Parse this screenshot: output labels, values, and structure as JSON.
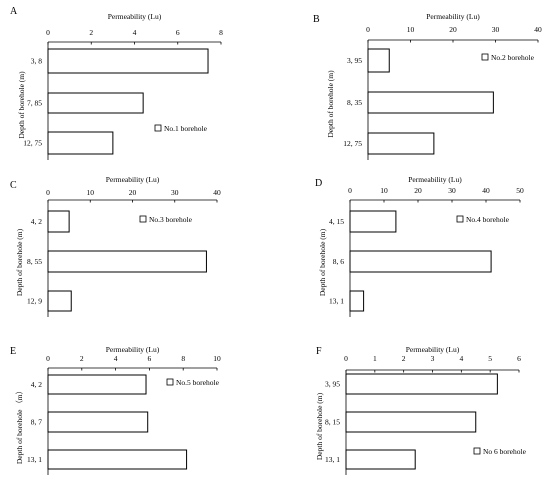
{
  "chart_data": [
    {
      "type": "bar",
      "orientation": "horizontal",
      "panel": "A",
      "title": "Permeability (Lu)",
      "ylabel": "Depth of borehole (m)",
      "categories": [
        "3, 8",
        "7, 85",
        "12, 75"
      ],
      "series": [
        {
          "name": "No.1 borehole",
          "values": [
            7.4,
            4.4,
            3.0
          ]
        }
      ],
      "xlim": [
        0,
        8
      ],
      "xticks": [
        0,
        2,
        4,
        6,
        8
      ],
      "legend": "bottom-right"
    },
    {
      "type": "bar",
      "orientation": "horizontal",
      "panel": "B",
      "title": "Permeability (Lu)",
      "ylabel": "Depth of borehole (m)",
      "categories": [
        "3, 95",
        "8, 35",
        "12, 75"
      ],
      "series": [
        {
          "name": "No.2 borehole",
          "values": [
            5,
            29.5,
            15.5
          ]
        }
      ],
      "xlim": [
        0,
        40
      ],
      "xticks": [
        0,
        10,
        20,
        30,
        40
      ],
      "legend": "top-right"
    },
    {
      "type": "bar",
      "orientation": "horizontal",
      "panel": "C",
      "title": "Permeability (Lu)",
      "ylabel": "Depth of borehole (m)",
      "categories": [
        "4, 2",
        "8, 55",
        "12, 9"
      ],
      "series": [
        {
          "name": "No.3 borehole",
          "values": [
            5,
            37.5,
            5.5
          ]
        }
      ],
      "xlim": [
        0,
        40
      ],
      "xticks": [
        0,
        10,
        20,
        30,
        40
      ],
      "legend": "top-right"
    },
    {
      "type": "bar",
      "orientation": "horizontal",
      "panel": "D",
      "title": "Permeability (Lu)",
      "ylabel": "Depth of borehole (m)",
      "categories": [
        "4, 15",
        "8, 6",
        "13, 1"
      ],
      "series": [
        {
          "name": "No.4 borehole",
          "values": [
            13.5,
            41.5,
            4
          ]
        }
      ],
      "xlim": [
        0,
        50
      ],
      "xticks": [
        0,
        10,
        20,
        30,
        40,
        50
      ],
      "legend": "top-right"
    },
    {
      "type": "bar",
      "orientation": "horizontal",
      "panel": "E",
      "title": "Permeability (Lu)",
      "ylabel": "Depth of borehole （m）",
      "categories": [
        "4, 2",
        "8, 7",
        "13, 1"
      ],
      "series": [
        {
          "name": "No.5 borehole",
          "values": [
            5.8,
            5.9,
            8.2
          ]
        }
      ],
      "xlim": [
        0,
        10
      ],
      "xticks": [
        0,
        2,
        4,
        6,
        8,
        10
      ],
      "legend": "top-right"
    },
    {
      "type": "bar",
      "orientation": "horizontal",
      "panel": "F",
      "title": "Permeability (Lu)",
      "ylabel": "Depth of borehole (m)",
      "categories": [
        "3, 95",
        "8, 15",
        "13, 1"
      ],
      "series": [
        {
          "name": "No 6 borehole",
          "values": [
            5.25,
            4.5,
            2.4
          ]
        }
      ],
      "xlim": [
        0,
        6
      ],
      "xticks": [
        0,
        1,
        2,
        3,
        4,
        5,
        6
      ],
      "legend": "bottom-right"
    }
  ]
}
